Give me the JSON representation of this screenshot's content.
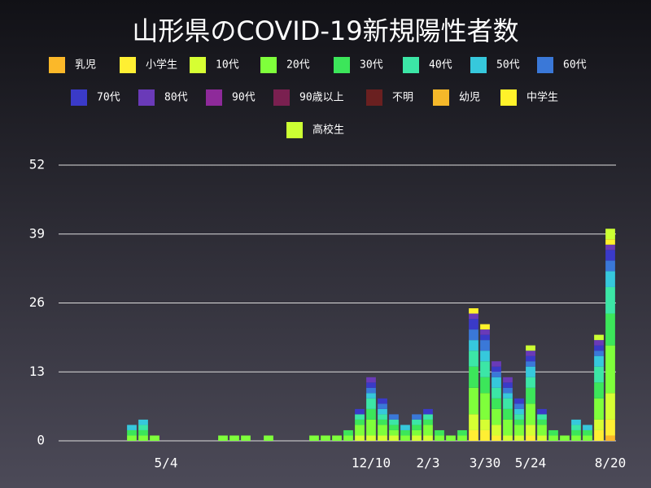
{
  "chart_data": {
    "type": "stacked-bar",
    "title": "山形県のCOVID-19新規陽性者数",
    "categories": [
      null,
      null,
      null,
      null,
      null,
      null,
      null,
      null,
      "5/4",
      null,
      null,
      null,
      null,
      null,
      null,
      null,
      null,
      null,
      null,
      null,
      null,
      null,
      null,
      null,
      null,
      null,
      "12/10",
      null,
      null,
      null,
      null,
      "2/3",
      null,
      null,
      null,
      null,
      "3/30",
      null,
      null,
      null,
      "5/24",
      null,
      null,
      null,
      null,
      null,
      null,
      "8/20"
    ],
    "ylim": [
      0,
      52
    ],
    "yticks": [
      0,
      13,
      26,
      39,
      52
    ],
    "grid": true,
    "series": [
      {
        "name": "乳児",
        "color": "#fbb829",
        "values": [
          0,
          0,
          0,
          0,
          0,
          0,
          0,
          0,
          0,
          0,
          0,
          0,
          0,
          0,
          0,
          0,
          0,
          0,
          0,
          0,
          0,
          0,
          0,
          0,
          0,
          0,
          0,
          0,
          0,
          0,
          0,
          0,
          0,
          0,
          0,
          0,
          0,
          0,
          0,
          0,
          0,
          0,
          0,
          0,
          0,
          0,
          0,
          1
        ]
      },
      {
        "name": "小学生",
        "color": "#ffef33",
        "values": [
          0,
          0,
          0,
          0,
          0,
          0,
          0,
          0,
          0,
          0,
          0,
          0,
          0,
          0,
          0,
          0,
          0,
          0,
          0,
          0,
          0,
          0,
          0,
          0,
          0,
          0,
          0,
          0,
          0,
          0,
          0,
          0,
          0,
          0,
          0,
          2,
          2,
          1,
          0,
          0,
          1,
          0,
          0,
          0,
          0,
          0,
          2,
          3
        ]
      },
      {
        "name": "10代",
        "color": "#d6ff33",
        "values": [
          0,
          0,
          0,
          0,
          0,
          0,
          0,
          0,
          0,
          0,
          0,
          0,
          0,
          0,
          0,
          0,
          0,
          0,
          0,
          0,
          0,
          0,
          0,
          0,
          0,
          1,
          1,
          1,
          1,
          0,
          1,
          1,
          0,
          0,
          0,
          3,
          2,
          2,
          1,
          1,
          2,
          1,
          0,
          0,
          0,
          0,
          2,
          5
        ]
      },
      {
        "name": "20代",
        "color": "#7fff3b",
        "values": [
          0,
          0,
          0,
          0,
          0,
          1,
          1,
          1,
          0,
          0,
          0,
          0,
          0,
          1,
          1,
          1,
          0,
          1,
          0,
          0,
          0,
          1,
          1,
          1,
          1,
          2,
          3,
          2,
          1,
          1,
          1,
          2,
          1,
          1,
          1,
          5,
          5,
          3,
          3,
          2,
          4,
          2,
          1,
          1,
          1,
          1,
          4,
          9
        ]
      },
      {
        "name": "30代",
        "color": "#3ce65a",
        "values": [
          0,
          0,
          0,
          0,
          0,
          1,
          1,
          0,
          0,
          0,
          0,
          0,
          0,
          0,
          0,
          0,
          0,
          0,
          0,
          0,
          0,
          0,
          0,
          0,
          1,
          1,
          2,
          1,
          1,
          1,
          1,
          1,
          1,
          0,
          1,
          4,
          3,
          2,
          2,
          1,
          3,
          1,
          1,
          0,
          1,
          1,
          3,
          6
        ]
      },
      {
        "name": "40代",
        "color": "#3ce6a6",
        "values": [
          0,
          0,
          0,
          0,
          0,
          0,
          1,
          0,
          0,
          0,
          0,
          0,
          0,
          0,
          0,
          0,
          0,
          0,
          0,
          0,
          0,
          0,
          0,
          0,
          0,
          1,
          2,
          1,
          1,
          0,
          1,
          1,
          0,
          0,
          0,
          3,
          3,
          2,
          2,
          1,
          2,
          1,
          0,
          0,
          1,
          0,
          3,
          5
        ]
      },
      {
        "name": "50代",
        "color": "#36c8dc",
        "values": [
          0,
          0,
          0,
          0,
          0,
          1,
          1,
          0,
          0,
          0,
          0,
          0,
          0,
          0,
          0,
          0,
          0,
          0,
          0,
          0,
          0,
          0,
          0,
          0,
          0,
          0,
          1,
          1,
          0,
          1,
          0,
          0,
          0,
          0,
          0,
          2,
          2,
          2,
          1,
          1,
          2,
          0,
          0,
          0,
          1,
          1,
          2,
          3
        ]
      },
      {
        "name": "60代",
        "color": "#3a78d8",
        "values": [
          0,
          0,
          0,
          0,
          0,
          0,
          0,
          0,
          0,
          0,
          0,
          0,
          0,
          0,
          0,
          0,
          0,
          0,
          0,
          0,
          0,
          0,
          0,
          0,
          0,
          0,
          1,
          1,
          1,
          0,
          1,
          0,
          0,
          0,
          0,
          2,
          2,
          1,
          1,
          1,
          1,
          0,
          0,
          0,
          0,
          0,
          1,
          2
        ]
      },
      {
        "name": "70代",
        "color": "#3a3ac8",
        "values": [
          0,
          0,
          0,
          0,
          0,
          0,
          0,
          0,
          0,
          0,
          0,
          0,
          0,
          0,
          0,
          0,
          0,
          0,
          0,
          0,
          0,
          0,
          0,
          0,
          0,
          1,
          1,
          1,
          0,
          0,
          0,
          1,
          0,
          0,
          0,
          2,
          1,
          1,
          1,
          1,
          1,
          1,
          0,
          0,
          0,
          0,
          1,
          2
        ]
      },
      {
        "name": "80代",
        "color": "#6a3ab8",
        "values": [
          0,
          0,
          0,
          0,
          0,
          0,
          0,
          0,
          0,
          0,
          0,
          0,
          0,
          0,
          0,
          0,
          0,
          0,
          0,
          0,
          0,
          0,
          0,
          0,
          0,
          0,
          1,
          0,
          0,
          0,
          0,
          0,
          0,
          0,
          0,
          1,
          1,
          1,
          1,
          0,
          1,
          0,
          0,
          0,
          0,
          0,
          1,
          1
        ]
      },
      {
        "name": "90代",
        "color": "#8e2a9a",
        "values": [
          0,
          0,
          0,
          0,
          0,
          0,
          0,
          0,
          0,
          0,
          0,
          0,
          0,
          0,
          0,
          0,
          0,
          0,
          0,
          0,
          0,
          0,
          0,
          0,
          0,
          0,
          0,
          0,
          0,
          0,
          0,
          0,
          0,
          0,
          0,
          0,
          0,
          0,
          0,
          0,
          0,
          0,
          0,
          0,
          0,
          0,
          0,
          0
        ]
      },
      {
        "name": "90歳以上",
        "color": "#7a2050",
        "values": [
          0,
          0,
          0,
          0,
          0,
          0,
          0,
          0,
          0,
          0,
          0,
          0,
          0,
          0,
          0,
          0,
          0,
          0,
          0,
          0,
          0,
          0,
          0,
          0,
          0,
          0,
          0,
          0,
          0,
          0,
          0,
          0,
          0,
          0,
          0,
          0,
          0,
          0,
          0,
          0,
          0,
          0,
          0,
          0,
          0,
          0,
          0,
          0
        ]
      },
      {
        "name": "不明",
        "color": "#6a2020",
        "values": [
          0,
          0,
          0,
          0,
          0,
          0,
          0,
          0,
          0,
          0,
          0,
          0,
          0,
          0,
          0,
          0,
          0,
          0,
          0,
          0,
          0,
          0,
          0,
          0,
          0,
          0,
          0,
          0,
          0,
          0,
          0,
          0,
          0,
          0,
          0,
          0,
          0,
          0,
          0,
          0,
          0,
          0,
          0,
          0,
          0,
          0,
          0,
          0
        ]
      },
      {
        "name": "幼児",
        "color": "#f5b82a",
        "values": [
          0,
          0,
          0,
          0,
          0,
          0,
          0,
          0,
          0,
          0,
          0,
          0,
          0,
          0,
          0,
          0,
          0,
          0,
          0,
          0,
          0,
          0,
          0,
          0,
          0,
          0,
          0,
          0,
          0,
          0,
          0,
          0,
          0,
          0,
          0,
          0,
          0,
          0,
          0,
          0,
          0,
          0,
          0,
          0,
          0,
          0,
          0,
          0
        ]
      },
      {
        "name": "中学生",
        "color": "#fff22a",
        "values": [
          0,
          0,
          0,
          0,
          0,
          0,
          0,
          0,
          0,
          0,
          0,
          0,
          0,
          0,
          0,
          0,
          0,
          0,
          0,
          0,
          0,
          0,
          0,
          0,
          0,
          0,
          0,
          0,
          0,
          0,
          0,
          0,
          0,
          0,
          0,
          1,
          1,
          0,
          0,
          0,
          0,
          0,
          0,
          0,
          0,
          0,
          0,
          1
        ]
      },
      {
        "name": "高校生",
        "color": "#ccff33",
        "values": [
          0,
          0,
          0,
          0,
          0,
          0,
          0,
          0,
          0,
          0,
          0,
          0,
          0,
          0,
          0,
          0,
          0,
          0,
          0,
          0,
          0,
          0,
          0,
          0,
          0,
          0,
          0,
          0,
          0,
          0,
          0,
          0,
          0,
          0,
          0,
          0,
          0,
          0,
          0,
          0,
          1,
          0,
          0,
          0,
          0,
          0,
          1,
          2
        ]
      }
    ]
  }
}
